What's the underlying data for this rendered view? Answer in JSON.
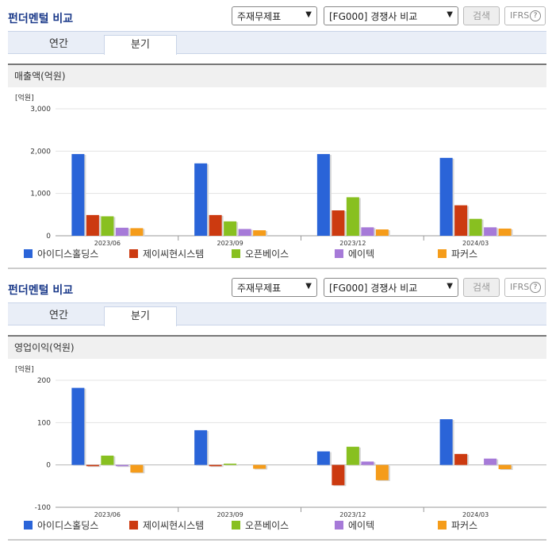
{
  "header": {
    "title": "펀더멘털 비교",
    "select1": "주재무제표",
    "select2": "[FG000] 경쟁사 비교",
    "search_label": "검색",
    "ifrs_label": "IFRS",
    "help_icon": "?"
  },
  "tabs": [
    "연간",
    "분기"
  ],
  "active_tab": "분기",
  "colors": {
    "아이디스홀딩스": "#2a64d8",
    "제이씨현시스템": "#cc3a10",
    "오픈베이스": "#88c020",
    "에이텍": "#a67ad8",
    "파커스": "#f59c1a"
  },
  "chart_data": [
    {
      "type": "bar",
      "title": "매출액(억원)",
      "unit": "[억원]",
      "categories": [
        "2023/06",
        "2023/09",
        "2023/12",
        "2024/03"
      ],
      "ylim": [
        0,
        3000
      ],
      "yticks": [
        "3,000",
        "2,000",
        "1,000",
        "0"
      ],
      "grid": true,
      "legend": "bottom",
      "series": [
        {
          "name": "아이디스홀딩스",
          "values": [
            1930,
            1710,
            1930,
            1840
          ]
        },
        {
          "name": "제이씨현시스템",
          "values": [
            490,
            490,
            600,
            720
          ]
        },
        {
          "name": "오픈베이스",
          "values": [
            460,
            340,
            910,
            400
          ]
        },
        {
          "name": "에이텍",
          "values": [
            190,
            160,
            200,
            200
          ]
        },
        {
          "name": "파커스",
          "values": [
            180,
            130,
            150,
            170
          ]
        }
      ]
    },
    {
      "type": "bar",
      "title": "영업이익(억원)",
      "unit": "[억원]",
      "categories": [
        "2023/06",
        "2023/09",
        "2023/12",
        "2024/03"
      ],
      "ylim": [
        -100,
        200
      ],
      "yticks": [
        "200",
        "100",
        "0",
        "-100"
      ],
      "grid": true,
      "legend": "bottom",
      "series": [
        {
          "name": "아이디스홀딩스",
          "values": [
            182,
            82,
            32,
            108
          ]
        },
        {
          "name": "제이씨현시스템",
          "values": [
            -3,
            -3,
            -48,
            26
          ]
        },
        {
          "name": "오픈베이스",
          "values": [
            22,
            3,
            43,
            0
          ]
        },
        {
          "name": "에이텍",
          "values": [
            -3,
            0,
            8,
            15
          ]
        },
        {
          "name": "파커스",
          "values": [
            -18,
            -9,
            -36,
            -10
          ]
        }
      ]
    }
  ]
}
